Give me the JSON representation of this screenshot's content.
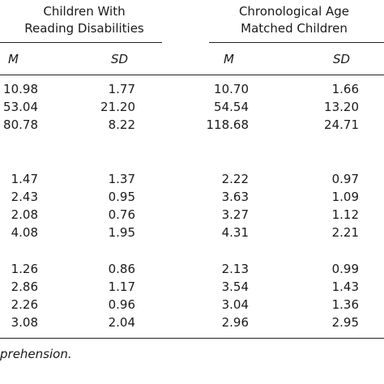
{
  "groups": [
    {
      "line1": "Children With",
      "line2": "Reading Disabilities"
    },
    {
      "line1": "Chronological Age",
      "line2": "Matched Children"
    }
  ],
  "stat_labels": {
    "mean": "M",
    "sd": "SD"
  },
  "rows": [
    [
      "10.98",
      "1.77",
      "10.70",
      "1.66"
    ],
    [
      "53.04",
      "21.20",
      "54.54",
      "13.20"
    ],
    [
      "80.78",
      "8.22",
      "118.68",
      "24.71"
    ],
    [
      "1.47",
      "1.37",
      "2.22",
      "0.97"
    ],
    [
      "2.43",
      "0.95",
      "3.63",
      "1.09"
    ],
    [
      "2.08",
      "0.76",
      "3.27",
      "1.12"
    ],
    [
      "4.08",
      "1.95",
      "4.31",
      "2.21"
    ],
    [
      "1.26",
      "0.86",
      "2.13",
      "0.99"
    ],
    [
      "2.86",
      "1.17",
      "3.54",
      "1.43"
    ],
    [
      "2.26",
      "0.96",
      "3.04",
      "1.36"
    ],
    [
      "3.08",
      "2.04",
      "2.96",
      "2.95"
    ]
  ],
  "footnote": "prehension."
}
